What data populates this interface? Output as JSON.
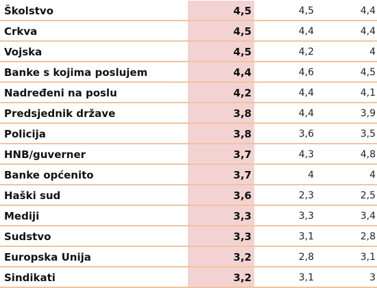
{
  "table": {
    "rows": [
      {
        "name": "Školstvo",
        "v1": "4,5",
        "v2": "4,5",
        "v3": "4,4"
      },
      {
        "name": "Crkva",
        "v1": "4,5",
        "v2": "4,4",
        "v3": "4,4"
      },
      {
        "name": "Vojska",
        "v1": "4,5",
        "v2": "4,2",
        "v3": "4"
      },
      {
        "name": "Banke s kojima poslujem",
        "v1": "4,4",
        "v2": "4,6",
        "v3": "4,5"
      },
      {
        "name": "Nadređeni na poslu",
        "v1": "4,2",
        "v2": "4,4",
        "v3": "4,1"
      },
      {
        "name": "Predsjednik države",
        "v1": "3,8",
        "v2": "4,4",
        "v3": "3,9"
      },
      {
        "name": "Policija",
        "v1": "3,8",
        "v2": "3,6",
        "v3": "3,5"
      },
      {
        "name": "HNB/guverner",
        "v1": "3,7",
        "v2": "4,3",
        "v3": "4,8"
      },
      {
        "name": "Banke općenito",
        "v1": "3,7",
        "v2": "4",
        "v3": "4"
      },
      {
        "name": "Haški sud",
        "v1": "3,6",
        "v2": "2,3",
        "v3": "2,5"
      },
      {
        "name": "Mediji",
        "v1": "3,3",
        "v2": "3,3",
        "v3": "3,4"
      },
      {
        "name": "Sudstvo",
        "v1": "3,3",
        "v2": "3,1",
        "v3": "2,8"
      },
      {
        "name": "Europska Unija",
        "v1": "3,2",
        "v2": "2,8",
        "v3": "3,1"
      },
      {
        "name": "Sindikati",
        "v1": "3,2",
        "v2": "3,1",
        "v3": "3"
      }
    ]
  },
  "colors": {
    "separator": "#f3c29e",
    "highlight_column": "#f2d3d2"
  }
}
